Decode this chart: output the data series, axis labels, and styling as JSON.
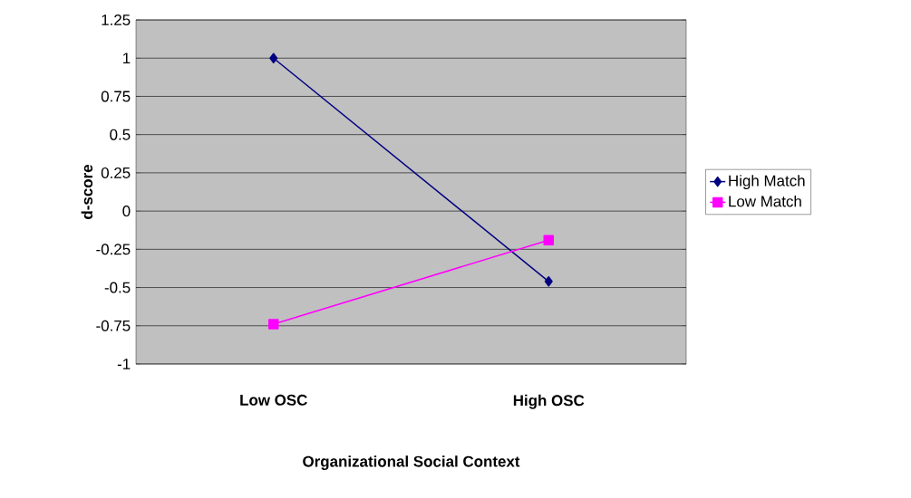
{
  "chart_data": {
    "type": "line",
    "xlabel": "Organizational Social Context",
    "ylabel": "d-score",
    "categories": [
      "Low OSC",
      "High OSC"
    ],
    "series": [
      {
        "name": "High Match",
        "color": "#000080",
        "marker": "diamond",
        "values": [
          1.0,
          -0.46
        ]
      },
      {
        "name": "Low Match",
        "color": "#ff00ff",
        "marker": "square",
        "values": [
          -0.74,
          -0.19
        ]
      }
    ],
    "ylim": [
      -1,
      1.25
    ],
    "yticks": [
      -1,
      -0.75,
      -0.5,
      -0.25,
      0,
      0.25,
      0.5,
      0.75,
      1,
      1.25
    ],
    "grid": "y",
    "legend": "right",
    "line_style": "solid"
  }
}
